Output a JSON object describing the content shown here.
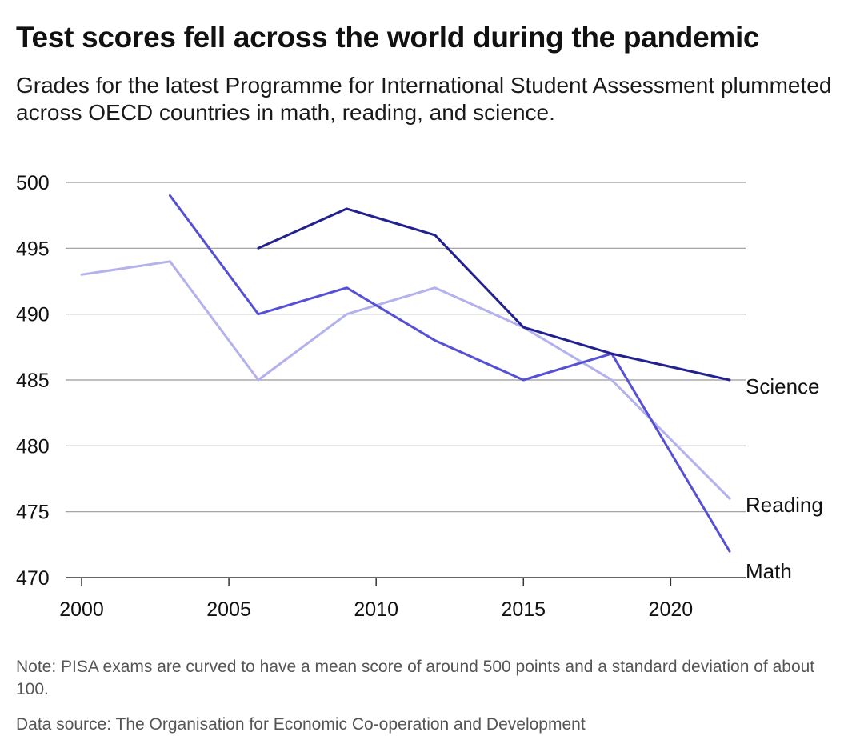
{
  "chart_data": {
    "type": "line",
    "title": "Test scores fell across the world during the pandemic",
    "subtitle": "Grades for the latest Programme for International Student Assessment plummeted across OECD countries in math, reading, and science.",
    "xlabel": "",
    "ylabel": "",
    "xlim": [
      2000,
      2022
    ],
    "ylim": [
      470,
      500
    ],
    "x_ticks": [
      2000,
      2005,
      2010,
      2015,
      2020
    ],
    "y_ticks": [
      470,
      475,
      480,
      485,
      490,
      495,
      500
    ],
    "grid": "horizontal",
    "legend": "direct labels at line ends",
    "series": [
      {
        "name": "Reading",
        "color": "#b3b1ee",
        "x": [
          2000,
          2003,
          2006,
          2009,
          2012,
          2015,
          2018,
          2022
        ],
        "y": [
          493,
          494,
          485,
          490,
          492,
          489,
          485,
          476
        ]
      },
      {
        "name": "Math",
        "color": "#5650d6",
        "x": [
          2003,
          2006,
          2009,
          2012,
          2015,
          2018,
          2022
        ],
        "y": [
          499,
          490,
          492,
          488,
          485,
          487,
          472
        ]
      },
      {
        "name": "Science",
        "color": "#23208f",
        "x": [
          2006,
          2009,
          2012,
          2015,
          2018,
          2022
        ],
        "y": [
          495,
          498,
          496,
          489,
          487,
          485
        ]
      }
    ]
  },
  "note": "Note: PISA exams are curved to have a mean score of around 500 points and a standard deviation of about 100.",
  "source": "Data source: The Organisation for Economic Co-operation and Development"
}
